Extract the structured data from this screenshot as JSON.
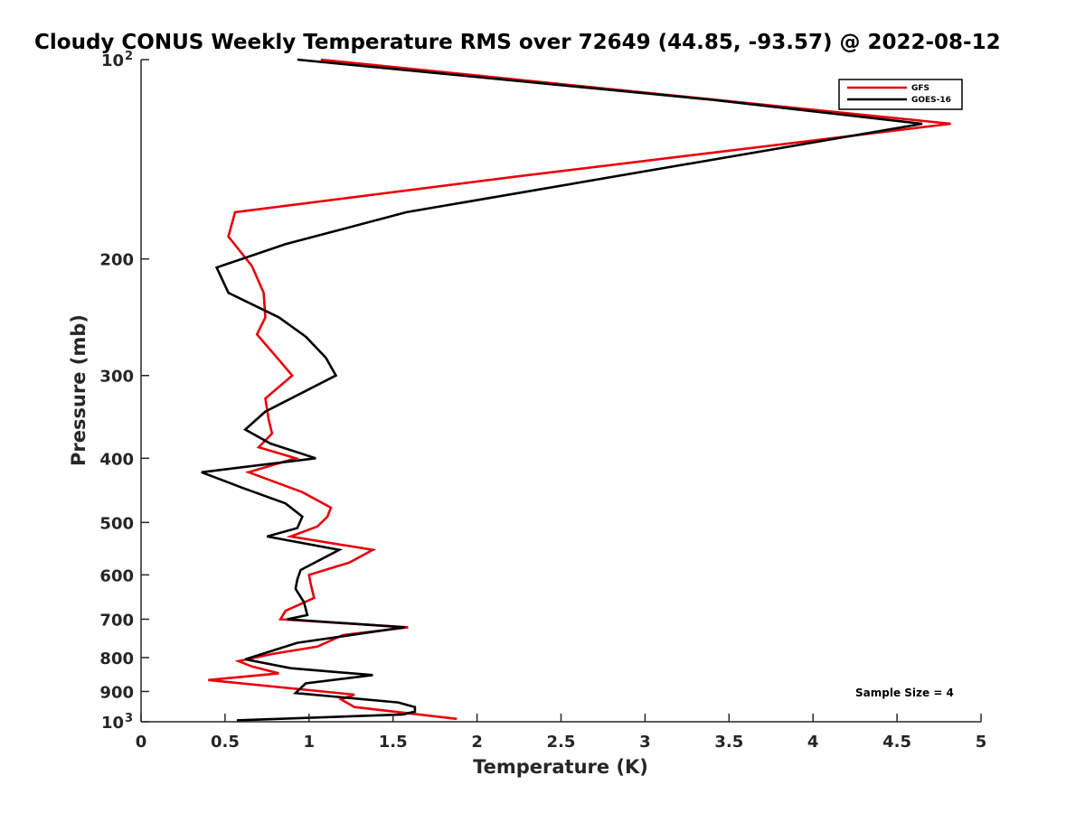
{
  "chart_data": {
    "type": "line",
    "title": "Cloudy CONUS Weekly Temperature RMS over 72649 (44.85, -93.57) @ 2022-08-12",
    "xlabel": "Temperature (K)",
    "ylabel": "Pressure (mb)",
    "xlim": [
      0,
      5
    ],
    "ylim": [
      100,
      1000
    ],
    "y_scale": "log",
    "y_reversed": true,
    "grid": false,
    "legend_position": "top-right",
    "x_ticks": [
      {
        "value": 0,
        "label": "0"
      },
      {
        "value": 0.5,
        "label": "0.5"
      },
      {
        "value": 1,
        "label": "1"
      },
      {
        "value": 1.5,
        "label": "1.5"
      },
      {
        "value": 2,
        "label": "2"
      },
      {
        "value": 2.5,
        "label": "2.5"
      },
      {
        "value": 3,
        "label": "3"
      },
      {
        "value": 3.5,
        "label": "3.5"
      },
      {
        "value": 4,
        "label": "4"
      },
      {
        "value": 4.5,
        "label": "4.5"
      },
      {
        "value": 5,
        "label": "5"
      }
    ],
    "y_ticks": [
      {
        "value": 100,
        "label": "10",
        "exponent": "2"
      },
      {
        "value": 200,
        "label": "200"
      },
      {
        "value": 300,
        "label": "300"
      },
      {
        "value": 400,
        "label": "400"
      },
      {
        "value": 500,
        "label": "500"
      },
      {
        "value": 600,
        "label": "600"
      },
      {
        "value": 700,
        "label": "700"
      },
      {
        "value": 800,
        "label": "800"
      },
      {
        "value": 900,
        "label": "900"
      },
      {
        "value": 1000,
        "label": "10",
        "exponent": "3"
      }
    ],
    "annotation": "Sample Size = 4",
    "series": [
      {
        "name": "GFS",
        "color": "#e8000b",
        "points": [
          [
            1.07,
            100
          ],
          [
            4.82,
            125
          ],
          [
            2.25,
            150
          ],
          [
            0.56,
            170
          ],
          [
            0.52,
            185
          ],
          [
            0.66,
            205
          ],
          [
            0.73,
            225
          ],
          [
            0.74,
            245
          ],
          [
            0.69,
            260
          ],
          [
            0.8,
            280
          ],
          [
            0.9,
            300
          ],
          [
            0.74,
            325
          ],
          [
            0.76,
            350
          ],
          [
            0.78,
            367
          ],
          [
            0.7,
            385
          ],
          [
            0.92,
            400
          ],
          [
            0.64,
            420
          ],
          [
            0.96,
            450
          ],
          [
            1.13,
            475
          ],
          [
            1.11,
            490
          ],
          [
            1.05,
            507
          ],
          [
            0.89,
            525
          ],
          [
            1.38,
            550
          ],
          [
            1.24,
            575
          ],
          [
            1.0,
            600
          ],
          [
            1.01,
            620
          ],
          [
            1.03,
            650
          ],
          [
            0.86,
            680
          ],
          [
            0.83,
            700
          ],
          [
            1.59,
            720
          ],
          [
            1.2,
            740
          ],
          [
            1.05,
            770
          ],
          [
            0.78,
            790
          ],
          [
            0.58,
            810
          ],
          [
            0.66,
            825
          ],
          [
            0.82,
            845
          ],
          [
            0.4,
            865
          ],
          [
            1.27,
            910
          ],
          [
            1.19,
            925
          ],
          [
            1.27,
            950
          ],
          [
            1.88,
            990
          ]
        ]
      },
      {
        "name": "GOES-16",
        "color": "#000000",
        "points": [
          [
            0.93,
            100
          ],
          [
            3.4,
            115
          ],
          [
            4.65,
            125
          ],
          [
            1.58,
            170
          ],
          [
            0.86,
            190
          ],
          [
            0.45,
            206
          ],
          [
            0.52,
            225
          ],
          [
            0.82,
            245
          ],
          [
            0.98,
            262
          ],
          [
            1.1,
            282
          ],
          [
            1.16,
            300
          ],
          [
            0.74,
            340
          ],
          [
            0.62,
            362
          ],
          [
            0.77,
            380
          ],
          [
            1.04,
            400
          ],
          [
            0.36,
            420
          ],
          [
            0.6,
            443
          ],
          [
            0.86,
            468
          ],
          [
            0.96,
            490
          ],
          [
            0.93,
            510
          ],
          [
            0.75,
            525
          ],
          [
            1.18,
            550
          ],
          [
            0.95,
            590
          ],
          [
            0.93,
            610
          ],
          [
            0.92,
            630
          ],
          [
            0.97,
            660
          ],
          [
            0.99,
            690
          ],
          [
            0.87,
            700
          ],
          [
            1.57,
            720
          ],
          [
            0.93,
            760
          ],
          [
            0.62,
            805
          ],
          [
            0.89,
            830
          ],
          [
            1.38,
            850
          ],
          [
            0.98,
            875
          ],
          [
            0.92,
            905
          ],
          [
            1.53,
            935
          ],
          [
            1.63,
            950
          ],
          [
            1.63,
            965
          ],
          [
            1.56,
            975
          ],
          [
            0.57,
            995
          ]
        ]
      }
    ]
  }
}
